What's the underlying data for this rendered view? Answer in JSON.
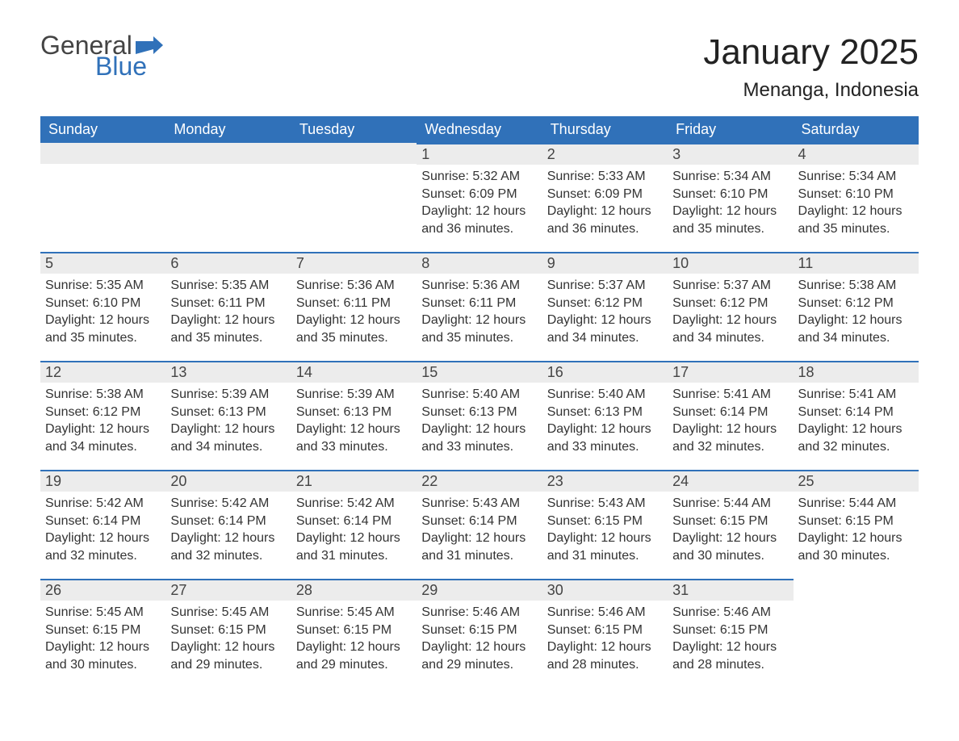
{
  "logo": {
    "word1": "General",
    "word2": "Blue",
    "flag_color": "#3071b9"
  },
  "title": "January 2025",
  "location": "Menanga, Indonesia",
  "colors": {
    "header_bg": "#3071b9",
    "header_text": "#ffffff",
    "date_bar_bg": "#ececec",
    "date_bar_border": "#3071b9",
    "body_text": "#333333",
    "background": "#ffffff"
  },
  "day_headers": [
    "Sunday",
    "Monday",
    "Tuesday",
    "Wednesday",
    "Thursday",
    "Friday",
    "Saturday"
  ],
  "weeks": [
    [
      null,
      null,
      null,
      {
        "date": "1",
        "sunrise": "Sunrise: 5:32 AM",
        "sunset": "Sunset: 6:09 PM",
        "daylight1": "Daylight: 12 hours",
        "daylight2": "and 36 minutes."
      },
      {
        "date": "2",
        "sunrise": "Sunrise: 5:33 AM",
        "sunset": "Sunset: 6:09 PM",
        "daylight1": "Daylight: 12 hours",
        "daylight2": "and 36 minutes."
      },
      {
        "date": "3",
        "sunrise": "Sunrise: 5:34 AM",
        "sunset": "Sunset: 6:10 PM",
        "daylight1": "Daylight: 12 hours",
        "daylight2": "and 35 minutes."
      },
      {
        "date": "4",
        "sunrise": "Sunrise: 5:34 AM",
        "sunset": "Sunset: 6:10 PM",
        "daylight1": "Daylight: 12 hours",
        "daylight2": "and 35 minutes."
      }
    ],
    [
      {
        "date": "5",
        "sunrise": "Sunrise: 5:35 AM",
        "sunset": "Sunset: 6:10 PM",
        "daylight1": "Daylight: 12 hours",
        "daylight2": "and 35 minutes."
      },
      {
        "date": "6",
        "sunrise": "Sunrise: 5:35 AM",
        "sunset": "Sunset: 6:11 PM",
        "daylight1": "Daylight: 12 hours",
        "daylight2": "and 35 minutes."
      },
      {
        "date": "7",
        "sunrise": "Sunrise: 5:36 AM",
        "sunset": "Sunset: 6:11 PM",
        "daylight1": "Daylight: 12 hours",
        "daylight2": "and 35 minutes."
      },
      {
        "date": "8",
        "sunrise": "Sunrise: 5:36 AM",
        "sunset": "Sunset: 6:11 PM",
        "daylight1": "Daylight: 12 hours",
        "daylight2": "and 35 minutes."
      },
      {
        "date": "9",
        "sunrise": "Sunrise: 5:37 AM",
        "sunset": "Sunset: 6:12 PM",
        "daylight1": "Daylight: 12 hours",
        "daylight2": "and 34 minutes."
      },
      {
        "date": "10",
        "sunrise": "Sunrise: 5:37 AM",
        "sunset": "Sunset: 6:12 PM",
        "daylight1": "Daylight: 12 hours",
        "daylight2": "and 34 minutes."
      },
      {
        "date": "11",
        "sunrise": "Sunrise: 5:38 AM",
        "sunset": "Sunset: 6:12 PM",
        "daylight1": "Daylight: 12 hours",
        "daylight2": "and 34 minutes."
      }
    ],
    [
      {
        "date": "12",
        "sunrise": "Sunrise: 5:38 AM",
        "sunset": "Sunset: 6:12 PM",
        "daylight1": "Daylight: 12 hours",
        "daylight2": "and 34 minutes."
      },
      {
        "date": "13",
        "sunrise": "Sunrise: 5:39 AM",
        "sunset": "Sunset: 6:13 PM",
        "daylight1": "Daylight: 12 hours",
        "daylight2": "and 34 minutes."
      },
      {
        "date": "14",
        "sunrise": "Sunrise: 5:39 AM",
        "sunset": "Sunset: 6:13 PM",
        "daylight1": "Daylight: 12 hours",
        "daylight2": "and 33 minutes."
      },
      {
        "date": "15",
        "sunrise": "Sunrise: 5:40 AM",
        "sunset": "Sunset: 6:13 PM",
        "daylight1": "Daylight: 12 hours",
        "daylight2": "and 33 minutes."
      },
      {
        "date": "16",
        "sunrise": "Sunrise: 5:40 AM",
        "sunset": "Sunset: 6:13 PM",
        "daylight1": "Daylight: 12 hours",
        "daylight2": "and 33 minutes."
      },
      {
        "date": "17",
        "sunrise": "Sunrise: 5:41 AM",
        "sunset": "Sunset: 6:14 PM",
        "daylight1": "Daylight: 12 hours",
        "daylight2": "and 32 minutes."
      },
      {
        "date": "18",
        "sunrise": "Sunrise: 5:41 AM",
        "sunset": "Sunset: 6:14 PM",
        "daylight1": "Daylight: 12 hours",
        "daylight2": "and 32 minutes."
      }
    ],
    [
      {
        "date": "19",
        "sunrise": "Sunrise: 5:42 AM",
        "sunset": "Sunset: 6:14 PM",
        "daylight1": "Daylight: 12 hours",
        "daylight2": "and 32 minutes."
      },
      {
        "date": "20",
        "sunrise": "Sunrise: 5:42 AM",
        "sunset": "Sunset: 6:14 PM",
        "daylight1": "Daylight: 12 hours",
        "daylight2": "and 32 minutes."
      },
      {
        "date": "21",
        "sunrise": "Sunrise: 5:42 AM",
        "sunset": "Sunset: 6:14 PM",
        "daylight1": "Daylight: 12 hours",
        "daylight2": "and 31 minutes."
      },
      {
        "date": "22",
        "sunrise": "Sunrise: 5:43 AM",
        "sunset": "Sunset: 6:14 PM",
        "daylight1": "Daylight: 12 hours",
        "daylight2": "and 31 minutes."
      },
      {
        "date": "23",
        "sunrise": "Sunrise: 5:43 AM",
        "sunset": "Sunset: 6:15 PM",
        "daylight1": "Daylight: 12 hours",
        "daylight2": "and 31 minutes."
      },
      {
        "date": "24",
        "sunrise": "Sunrise: 5:44 AM",
        "sunset": "Sunset: 6:15 PM",
        "daylight1": "Daylight: 12 hours",
        "daylight2": "and 30 minutes."
      },
      {
        "date": "25",
        "sunrise": "Sunrise: 5:44 AM",
        "sunset": "Sunset: 6:15 PM",
        "daylight1": "Daylight: 12 hours",
        "daylight2": "and 30 minutes."
      }
    ],
    [
      {
        "date": "26",
        "sunrise": "Sunrise: 5:45 AM",
        "sunset": "Sunset: 6:15 PM",
        "daylight1": "Daylight: 12 hours",
        "daylight2": "and 30 minutes."
      },
      {
        "date": "27",
        "sunrise": "Sunrise: 5:45 AM",
        "sunset": "Sunset: 6:15 PM",
        "daylight1": "Daylight: 12 hours",
        "daylight2": "and 29 minutes."
      },
      {
        "date": "28",
        "sunrise": "Sunrise: 5:45 AM",
        "sunset": "Sunset: 6:15 PM",
        "daylight1": "Daylight: 12 hours",
        "daylight2": "and 29 minutes."
      },
      {
        "date": "29",
        "sunrise": "Sunrise: 5:46 AM",
        "sunset": "Sunset: 6:15 PM",
        "daylight1": "Daylight: 12 hours",
        "daylight2": "and 29 minutes."
      },
      {
        "date": "30",
        "sunrise": "Sunrise: 5:46 AM",
        "sunset": "Sunset: 6:15 PM",
        "daylight1": "Daylight: 12 hours",
        "daylight2": "and 28 minutes."
      },
      {
        "date": "31",
        "sunrise": "Sunrise: 5:46 AM",
        "sunset": "Sunset: 6:15 PM",
        "daylight1": "Daylight: 12 hours",
        "daylight2": "and 28 minutes."
      },
      null
    ]
  ]
}
